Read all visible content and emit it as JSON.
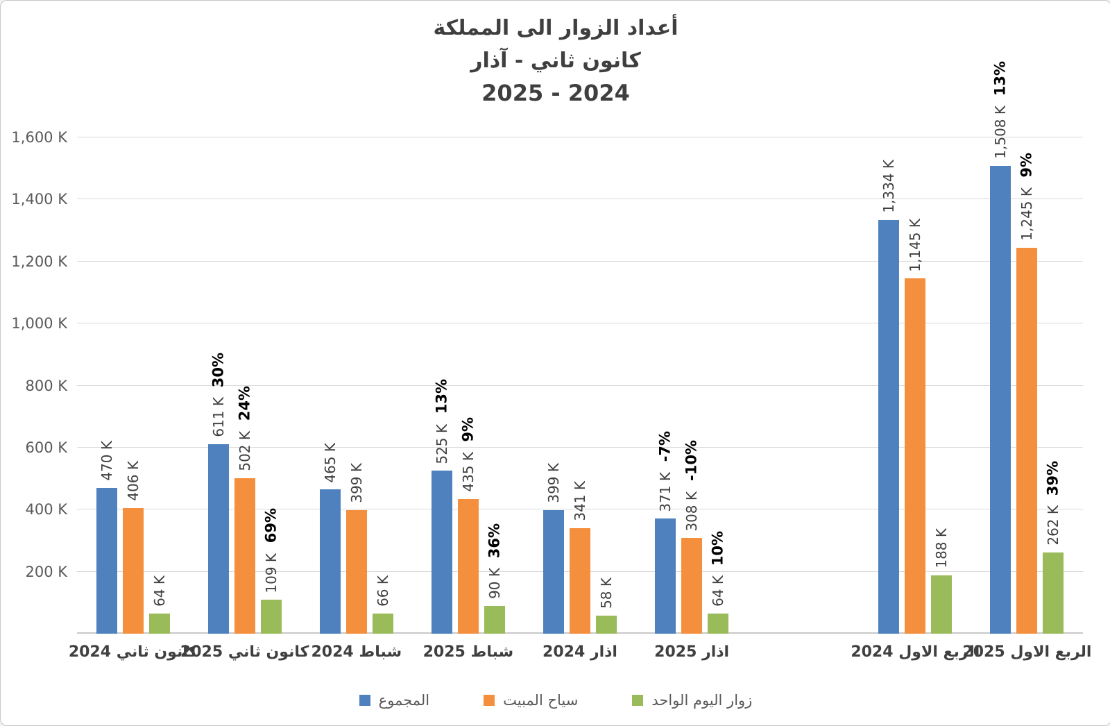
{
  "title": {
    "line1": "أعداد الزوار الى المملكة",
    "line2": "كانون ثاني - آذار",
    "line3": "2025 - 2024"
  },
  "colors": {
    "total_blue": "#4E81BD",
    "overnight_orange": "#F4903D",
    "dayvisitor_green": "#9ABB59",
    "gridline": "#D9D9D9",
    "axis_line": "#C9C9C9",
    "tick_text": "#595959",
    "value_label_text": "#3F3F3F",
    "percent_label_text": "#000000",
    "x_label_text": "#404040"
  },
  "y_axis": {
    "ticks": [
      "200 K",
      "400 K",
      "600 K",
      "800 K",
      "1,000 K",
      "1,200 K",
      "1,400 K",
      "1,600 K"
    ],
    "tick_values": [
      200,
      400,
      600,
      800,
      1000,
      1200,
      1400,
      1600
    ],
    "max": 1600,
    "unit": "K"
  },
  "chart_data": {
    "type": "bar",
    "title": "أعداد الزوار الى المملكة كانون ثاني - آذار 2025 - 2024",
    "ylim": [
      0,
      1600
    ],
    "y_unit": "K",
    "grid": true,
    "legend_position": "bottom",
    "series": [
      {
        "name": "المجموع",
        "color": "#4E81BD"
      },
      {
        "name": "سياح المبيت",
        "color": "#F4903D"
      },
      {
        "name": "زوار اليوم الواحد",
        "color": "#9ABB59"
      }
    ],
    "categories": [
      {
        "label": "كانون ثاني 2024",
        "values": [
          470,
          406,
          64
        ],
        "value_labels": [
          "470 K",
          "406 K",
          "64 K"
        ],
        "pct_labels": [
          null,
          null,
          null
        ]
      },
      {
        "label": "كانون ثاني 2025",
        "values": [
          611,
          502,
          109
        ],
        "value_labels": [
          "611 K",
          "502 K",
          "109 K"
        ],
        "pct_labels": [
          "30%",
          "24%",
          "69%"
        ]
      },
      {
        "label": "شباط 2024",
        "values": [
          465,
          399,
          66
        ],
        "value_labels": [
          "465 K",
          "399 K",
          "66 K"
        ],
        "pct_labels": [
          null,
          null,
          null
        ]
      },
      {
        "label": "شباط 2025",
        "values": [
          525,
          435,
          90
        ],
        "value_labels": [
          "525 K",
          "435 K",
          "90 K"
        ],
        "pct_labels": [
          "13%",
          "9%",
          "36%"
        ]
      },
      {
        "label": "اذار 2024",
        "values": [
          399,
          341,
          58
        ],
        "value_labels": [
          "399 K",
          "341 K",
          "58 K"
        ],
        "pct_labels": [
          null,
          null,
          null
        ]
      },
      {
        "label": "اذار 2025",
        "values": [
          371,
          308,
          64
        ],
        "value_labels": [
          "371 K",
          "308 K",
          "64 K"
        ],
        "pct_labels": [
          "-7%",
          "-10%",
          "10%"
        ]
      },
      {
        "label": "",
        "spacer": true,
        "values": [],
        "value_labels": [],
        "pct_labels": []
      },
      {
        "label": "الربع الاول 2024",
        "values": [
          1334,
          1145,
          188
        ],
        "value_labels": [
          "1,334 K",
          "1,145 K",
          "188 K"
        ],
        "pct_labels": [
          null,
          null,
          null
        ]
      },
      {
        "label": "الربع الاول 2025",
        "values": [
          1508,
          1245,
          262
        ],
        "value_labels": [
          "1,508 K",
          "1,245 K",
          "262 K"
        ],
        "pct_labels": [
          "13%",
          "9%",
          "39%"
        ]
      }
    ]
  }
}
